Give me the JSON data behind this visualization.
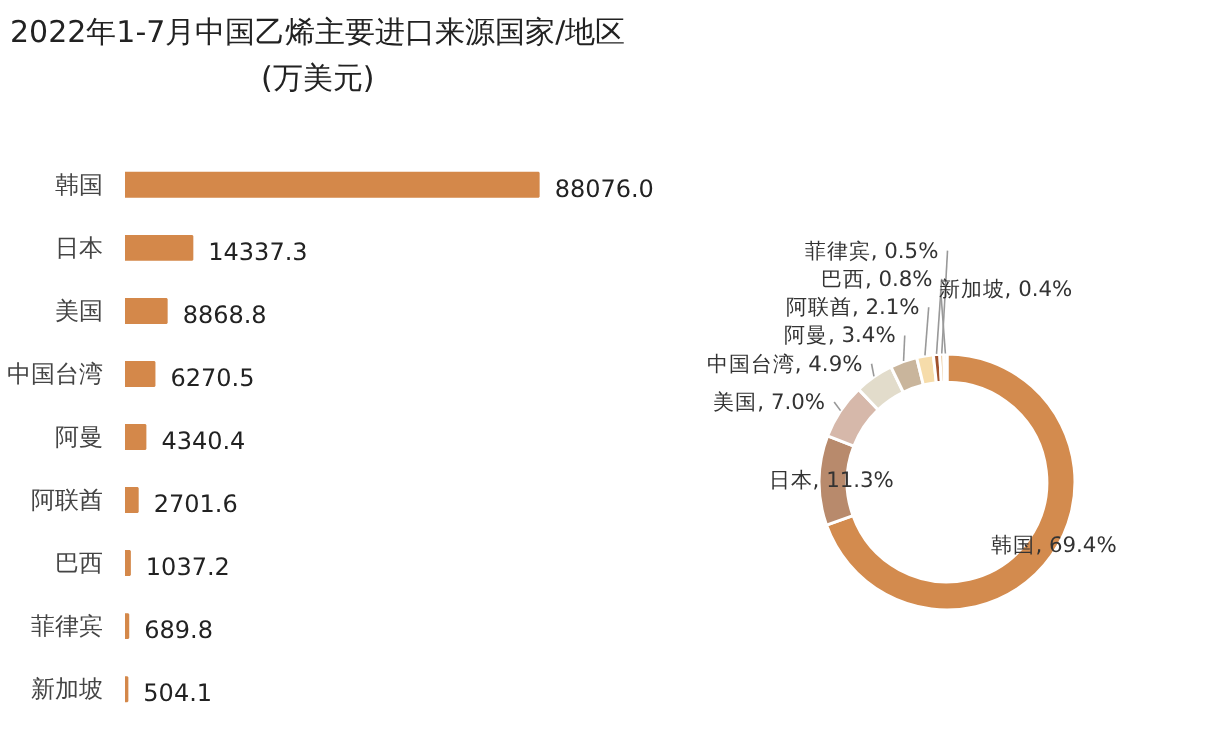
{
  "chart_data": [
    {
      "type": "bar",
      "orientation": "horizontal",
      "title": "2022年1-7月中国乙烯主要进口来源国家/地区\n(万美元)",
      "categories": [
        "韩国",
        "日本",
        "美国",
        "中国台湾",
        "阿曼",
        "阿联酋",
        "巴西",
        "菲律宾",
        "新加坡"
      ],
      "values": [
        88076.0,
        14337.3,
        8868.8,
        6270.5,
        4340.4,
        2701.6,
        1037.2,
        689.8,
        504.1
      ],
      "value_labels": [
        "88076.0",
        "14337.3",
        "8868.8",
        "6270.5",
        "4340.4",
        "2701.6",
        "1037.2",
        "689.8",
        "504.1"
      ],
      "color": "#d4884a",
      "tick_labels": "y",
      "grid": false
    },
    {
      "type": "donut",
      "categories": [
        "韩国",
        "日本",
        "美国",
        "中国台湾",
        "阿曼",
        "阿联酋",
        "巴西",
        "菲律宾",
        "新加坡"
      ],
      "values": [
        69.4,
        11.3,
        7.0,
        4.9,
        3.4,
        2.1,
        0.8,
        0.5,
        0.4
      ],
      "colors": [
        "#d38b4e",
        "#b88a6c",
        "#d6b8aa",
        "#e2dccb",
        "#c9b59c",
        "#f6dcaa",
        "#a0522d",
        "#e0b070",
        "#efe0c4"
      ],
      "value_labels": [
        ", 69.4%",
        ", 11.3%",
        ", 7.0%",
        ", 4.9%",
        ", 3.4%",
        ", 2.1%",
        ", 0.8%",
        ", 0.5%",
        ", 0.4%"
      ]
    }
  ]
}
